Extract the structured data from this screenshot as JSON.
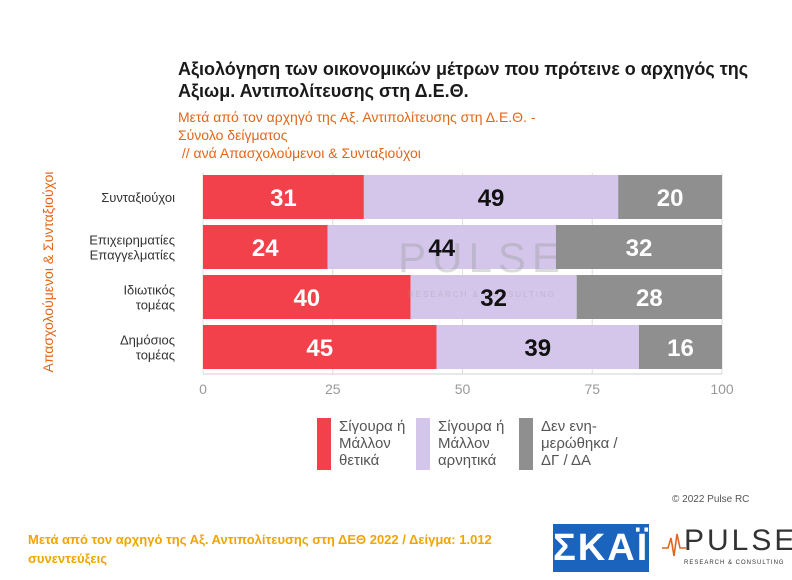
{
  "title": "Αξιολόγηση των οικονομικών μέτρων που πρότεινε ο αρχηγός της Αξιωμ. Αντιπολίτευσης στη Δ.Ε.Θ.",
  "subtitle_lines": [
    "Μετά από τον αρχηγό της Αξ. Αντιπολίτευσης στη Δ.Ε.Θ. -",
    "Σύνολο δείγματος",
    " // ανά Απασχολούμενοι & Συνταξιούχοι"
  ],
  "y_axis_title": "Απασχολούμενοι & Συνταξιούχοι",
  "watermark": {
    "name": "PULSE",
    "tagline": "RESEARCH & CONSULTING"
  },
  "legend": [
    {
      "label": "Σίγουρα ή Μάλλον θετικά",
      "color": "#f2414b"
    },
    {
      "label": "Σίγουρα ή Μάλλον αρνητικά",
      "color": "#d3c6ea"
    },
    {
      "label": "Δεν ενη-μερώθηκα / ΔΓ / ΔΑ",
      "color": "#8f8f8f"
    }
  ],
  "copyright": "© 2022 Pulse RC",
  "footnote": "Μετά από τον αρχηγό της Αξ. Αντιπολίτευσης στη ΔΕΘ  2022  /  Δείγμα:  1.012 συνεντεύξεις",
  "logos": {
    "skai": "ΣΚΑΪ",
    "pulse": "PULSE",
    "pulse_tagline": "RESEARCH & CONSULTING"
  },
  "chart_data": {
    "type": "bar",
    "orientation": "horizontal",
    "stacked": true,
    "categories": [
      "Συνταξιούχοι",
      "Επιχειρηματίες Επαγγελματίες",
      "Ιδιωτικός τομέας",
      "Δημόσιος τομέας"
    ],
    "category_lines": [
      [
        "Συνταξιούχοι"
      ],
      [
        "Επιχειρηματίες",
        "Επαγγελματίες"
      ],
      [
        "Ιδιωτικός",
        "τομέας"
      ],
      [
        "Δημόσιος",
        "τομέας"
      ]
    ],
    "series": [
      {
        "name": "Σίγουρα ή Μάλλον θετικά",
        "color": "#f2414b",
        "label_color": "#ffffff",
        "values": [
          31,
          24,
          40,
          45
        ]
      },
      {
        "name": "Σίγουρα ή Μάλλον αρνητικά",
        "color": "#d3c6ea",
        "label_color": "#111111",
        "values": [
          49,
          44,
          32,
          39
        ]
      },
      {
        "name": "Δεν ενη-μερώθηκα / ΔΓ / ΔΑ",
        "color": "#8f8f8f",
        "label_color": "#ffffff",
        "values": [
          20,
          32,
          28,
          16
        ]
      }
    ],
    "xlim": [
      0,
      100
    ],
    "xticks": [
      0,
      25,
      50,
      75,
      100
    ],
    "grid": true,
    "legend_position": "bottom"
  }
}
